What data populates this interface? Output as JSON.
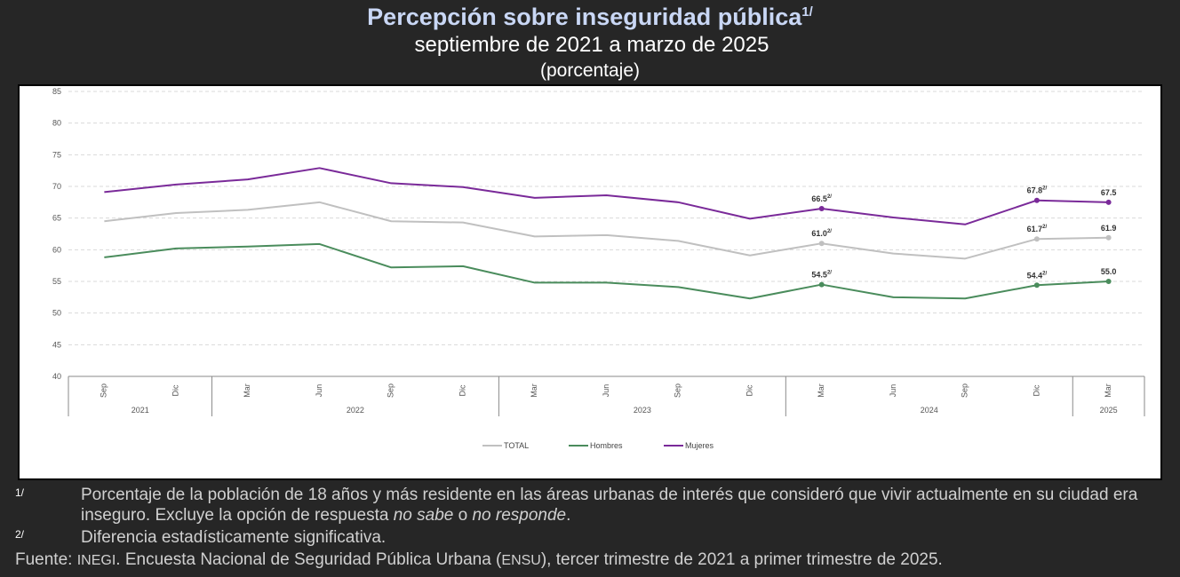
{
  "header": {
    "title": "Percepción sobre inseguridad pública",
    "title_note": "1/",
    "subtitle": "septiembre de 2021 a marzo de 2025",
    "unit": "(porcentaje)"
  },
  "chart_data": {
    "type": "line",
    "ylim": [
      40,
      85
    ],
    "yticks": [
      "85",
      "80",
      "75",
      "70",
      "65",
      "60",
      "55",
      "50",
      "45",
      "40"
    ],
    "grid": true,
    "legend_position": "bottom",
    "categories": [
      "Sep",
      "Dic",
      "Mar",
      "Jun",
      "Sep",
      "Dic",
      "Mar",
      "Jun",
      "Sep",
      "Dic",
      "Mar",
      "Jun",
      "Sep",
      "Dic",
      "Mar"
    ],
    "years": [
      {
        "label": "2021",
        "span": 2
      },
      {
        "label": "2022",
        "span": 4
      },
      {
        "label": "2023",
        "span": 4
      },
      {
        "label": "2024",
        "span": 4
      },
      {
        "label": "2025",
        "span": 1
      }
    ],
    "series": [
      {
        "name": "TOTAL",
        "color": "#c0c0c0",
        "values": [
          64.5,
          65.8,
          66.3,
          67.5,
          64.5,
          64.3,
          62.1,
          62.3,
          61.4,
          59.1,
          61.0,
          59.4,
          58.6,
          61.7,
          61.9
        ],
        "labels": [
          {
            "index": 10,
            "text": "61.0",
            "sup": "2/"
          },
          {
            "index": 13,
            "text": "61.7",
            "sup": "2/"
          },
          {
            "index": 14,
            "text": "61.9",
            "sup": ""
          }
        ]
      },
      {
        "name": "Hombres",
        "color": "#4a8c5c",
        "values": [
          58.8,
          60.2,
          60.5,
          60.9,
          57.2,
          57.4,
          54.8,
          54.8,
          54.1,
          52.3,
          54.5,
          52.5,
          52.3,
          54.4,
          55.0
        ],
        "labels": [
          {
            "index": 10,
            "text": "54.5",
            "sup": "2/"
          },
          {
            "index": 13,
            "text": "54.4",
            "sup": "2/"
          },
          {
            "index": 14,
            "text": "55.0",
            "sup": ""
          }
        ]
      },
      {
        "name": "Mujeres",
        "color": "#7a2a99",
        "values": [
          69.1,
          70.3,
          71.1,
          72.9,
          70.5,
          69.9,
          68.2,
          68.6,
          67.5,
          64.9,
          66.5,
          65.1,
          64.0,
          67.8,
          67.5
        ],
        "labels": [
          {
            "index": 10,
            "text": "66.5",
            "sup": "2/"
          },
          {
            "index": 13,
            "text": "67.8",
            "sup": "2/"
          },
          {
            "index": 14,
            "text": "67.5",
            "sup": ""
          }
        ]
      }
    ]
  },
  "notes": [
    {
      "mark": "1/",
      "text_before": "Porcentaje de la población de 18 años y más residente en las áreas urbanas de interés que consideró que vivir actualmente en su ciudad era inseguro. Excluye la opción de respuesta ",
      "italic1": "no sabe",
      "mid": " o ",
      "italic2": "no responde",
      "after": "."
    },
    {
      "mark": "2/",
      "text": "Diferencia estadísticamente significativa."
    }
  ],
  "source": {
    "prefix": "Fuente: ",
    "org": "INEGI",
    "mid": ". Encuesta Nacional de Seguridad Pública Urbana (",
    "acronym": "ENSU",
    "suffix": "), tercer trimestre de 2021 a primer trimestre de 2025."
  }
}
